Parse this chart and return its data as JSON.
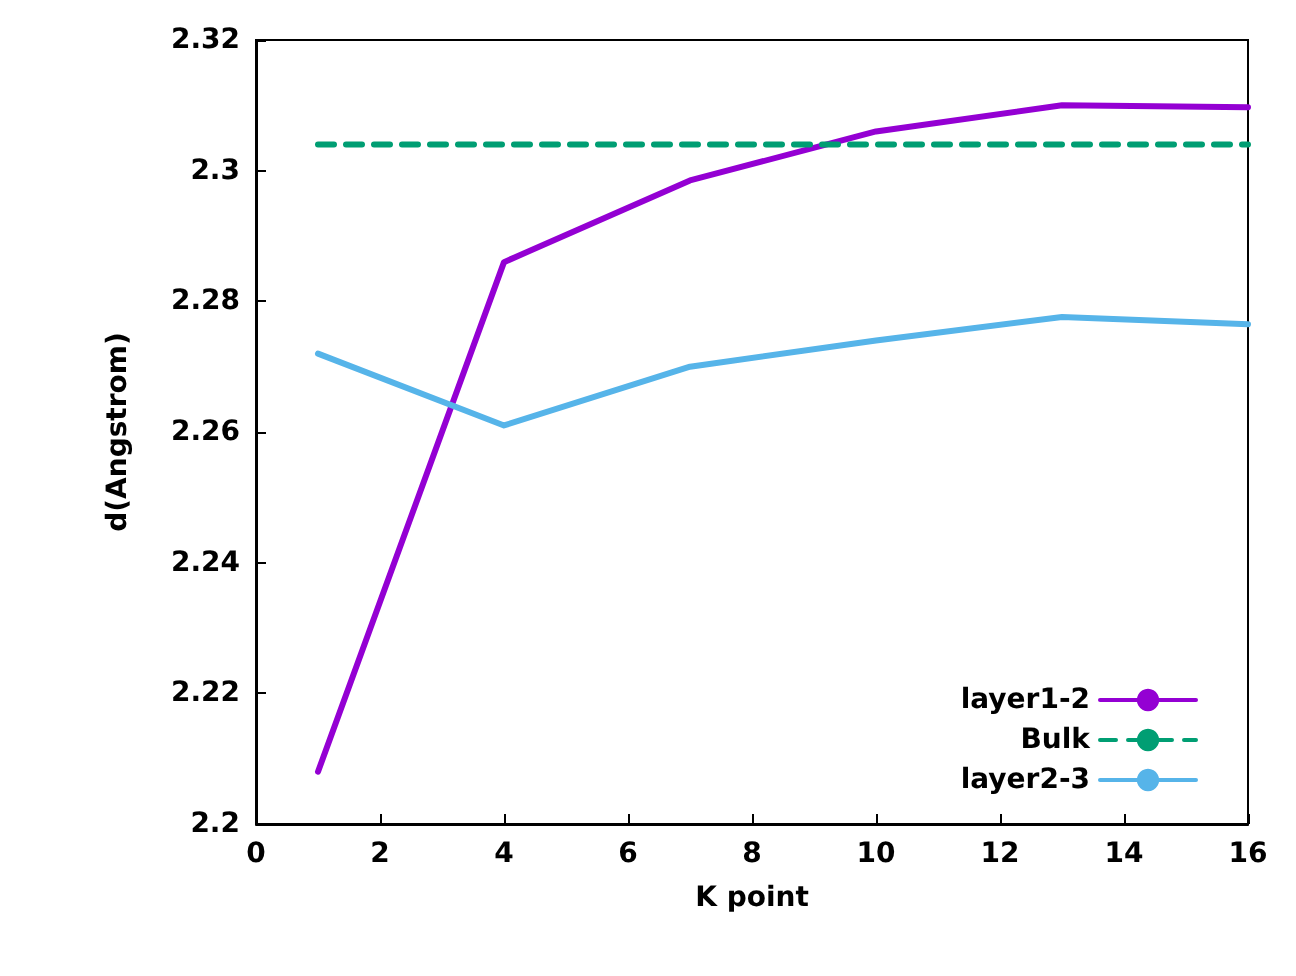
{
  "chart_data": {
    "type": "line",
    "xlabel": "K point",
    "ylabel": "d(Angstrom)",
    "xlim": [
      0,
      16
    ],
    "xticks": [
      0,
      2,
      4,
      6,
      8,
      10,
      12,
      14,
      16
    ],
    "ylim": [
      2.2,
      2.32
    ],
    "yticks": [
      2.2,
      2.22,
      2.24,
      2.26,
      2.28,
      2.3,
      2.32
    ],
    "legend": "bottom right",
    "grid": false,
    "marker": "none",
    "series": [
      {
        "name": "layer1-2",
        "color": "#9400d3",
        "x": [
          1,
          4,
          7,
          10,
          13,
          16
        ],
        "values": [
          2.208,
          2.286,
          2.2985,
          2.306,
          2.31,
          2.3097
        ]
      },
      {
        "name": "Bulk",
        "color": "#009e73",
        "line_style": "dashed",
        "x": [
          1,
          16
        ],
        "values": [
          2.304,
          2.304
        ]
      },
      {
        "name": "layer2-3",
        "color": "#56b4e9",
        "x": [
          1,
          4,
          7,
          10,
          13,
          16
        ],
        "values": [
          2.272,
          2.261,
          2.27,
          2.274,
          2.2776,
          2.2765
        ]
      }
    ]
  }
}
